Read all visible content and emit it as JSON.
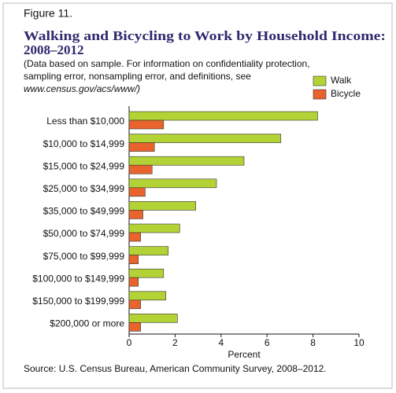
{
  "chart_data": {
    "type": "hbar",
    "figure_label": "Figure 11.",
    "title": [
      "Walking and Bicycling to Work by Household Income:",
      "2008–2012"
    ],
    "notes": [
      "(Data based on sample. For information on confidentiality protection,",
      "sampling error, nonsampling error, and definitions, see",
      "www.census.gov/acs/www/)"
    ],
    "categories": [
      "Less than $10,000",
      "$10,000 to $14,999",
      "$15,000 to $24,999",
      "$25,000 to $34,999",
      "$35,000 to $49,999",
      "$50,000 to $74,999",
      "$75,000 to $99,999",
      "$100,000 to $149,999",
      "$150,000 to $199,999",
      "$200,000 or more"
    ],
    "series": [
      {
        "name": "Walk",
        "color": "#b3d235",
        "values": [
          8.2,
          6.6,
          5.0,
          3.8,
          2.9,
          2.2,
          1.7,
          1.5,
          1.6,
          2.1
        ]
      },
      {
        "name": "Bicycle",
        "color": "#e8642c",
        "values": [
          1.5,
          1.1,
          1.0,
          0.7,
          0.6,
          0.5,
          0.4,
          0.4,
          0.5,
          0.5
        ]
      }
    ],
    "x_label": "Percent",
    "xlim": [
      0,
      10
    ],
    "xticks": [
      0,
      2,
      4,
      6,
      8,
      10
    ],
    "grid": false,
    "source": "Source: U.S. Census Bureau, American Community Survey, 2008–2012."
  }
}
